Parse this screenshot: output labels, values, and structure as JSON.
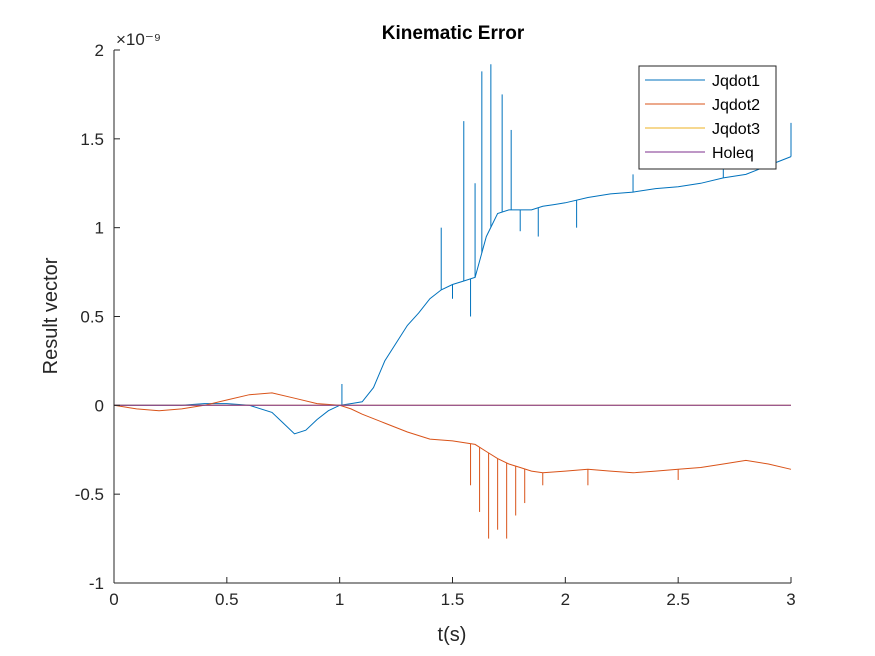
{
  "chart_data": {
    "type": "line",
    "title": "Kinematic Error",
    "xlabel": "t(s)",
    "ylabel": "Result vector",
    "xlim": [
      0,
      3
    ],
    "ylim": [
      -1,
      2
    ],
    "y_multiplier": "×10⁻⁹",
    "x_ticks": [
      "0",
      "0.5",
      "1",
      "1.5",
      "2",
      "2.5",
      "3"
    ],
    "y_ticks": [
      "-1",
      "-0.5",
      "0",
      "0.5",
      "1",
      "1.5",
      "2"
    ],
    "grid": false,
    "legend_position": "top-right",
    "series": [
      {
        "name": "Jqdot1",
        "color": "#0072BD",
        "x": [
          0,
          0.1,
          0.2,
          0.3,
          0.4,
          0.5,
          0.6,
          0.7,
          0.75,
          0.8,
          0.85,
          0.9,
          0.95,
          1.0,
          1.05,
          1.1,
          1.15,
          1.2,
          1.25,
          1.3,
          1.35,
          1.4,
          1.45,
          1.5,
          1.55,
          1.6,
          1.65,
          1.7,
          1.75,
          1.8,
          1.85,
          1.9,
          1.95,
          2.0,
          2.1,
          2.2,
          2.3,
          2.4,
          2.5,
          2.6,
          2.7,
          2.8,
          2.9,
          3.0
        ],
        "y": [
          0,
          0,
          0,
          0,
          0.01,
          0.01,
          0,
          -0.04,
          -0.1,
          -0.16,
          -0.14,
          -0.08,
          -0.03,
          0,
          0.01,
          0.02,
          0.1,
          0.25,
          0.35,
          0.45,
          0.52,
          0.6,
          0.65,
          0.68,
          0.7,
          0.72,
          0.95,
          1.08,
          1.1,
          1.1,
          1.1,
          1.12,
          1.13,
          1.14,
          1.17,
          1.19,
          1.2,
          1.22,
          1.23,
          1.25,
          1.28,
          1.3,
          1.35,
          1.4
        ],
        "spikes": [
          {
            "x": 1.01,
            "y": 0.12
          },
          {
            "x": 1.45,
            "y": 1.0
          },
          {
            "x": 1.5,
            "y": 0.6
          },
          {
            "x": 1.55,
            "y": 1.6
          },
          {
            "x": 1.58,
            "y": 0.5
          },
          {
            "x": 1.6,
            "y": 1.25
          },
          {
            "x": 1.63,
            "y": 1.88
          },
          {
            "x": 1.67,
            "y": 1.92
          },
          {
            "x": 1.72,
            "y": 1.75
          },
          {
            "x": 1.76,
            "y": 1.55
          },
          {
            "x": 1.8,
            "y": 0.98
          },
          {
            "x": 1.88,
            "y": 0.95
          },
          {
            "x": 2.05,
            "y": 1.0
          },
          {
            "x": 2.3,
            "y": 1.3
          },
          {
            "x": 2.6,
            "y": 1.25
          },
          {
            "x": 2.7,
            "y": 1.35
          },
          {
            "x": 2.9,
            "y": 1.45
          },
          {
            "x": 3.0,
            "y": 1.59
          }
        ]
      },
      {
        "name": "Jqdot2",
        "color": "#D95319",
        "x": [
          0,
          0.1,
          0.2,
          0.3,
          0.4,
          0.5,
          0.6,
          0.7,
          0.8,
          0.9,
          1.0,
          1.05,
          1.1,
          1.2,
          1.3,
          1.4,
          1.5,
          1.6,
          1.65,
          1.7,
          1.75,
          1.8,
          1.85,
          1.9,
          2.0,
          2.1,
          2.2,
          2.3,
          2.4,
          2.5,
          2.6,
          2.7,
          2.8,
          2.9,
          3.0
        ],
        "y": [
          0,
          -0.02,
          -0.03,
          -0.02,
          0,
          0.03,
          0.06,
          0.07,
          0.04,
          0.01,
          0,
          -0.02,
          -0.05,
          -0.1,
          -0.15,
          -0.19,
          -0.2,
          -0.22,
          -0.26,
          -0.3,
          -0.33,
          -0.35,
          -0.37,
          -0.38,
          -0.37,
          -0.36,
          -0.37,
          -0.38,
          -0.37,
          -0.36,
          -0.35,
          -0.33,
          -0.31,
          -0.33,
          -0.36
        ],
        "spikes": [
          {
            "x": 1.58,
            "y": -0.45
          },
          {
            "x": 1.62,
            "y": -0.6
          },
          {
            "x": 1.66,
            "y": -0.75
          },
          {
            "x": 1.7,
            "y": -0.7
          },
          {
            "x": 1.74,
            "y": -0.75
          },
          {
            "x": 1.78,
            "y": -0.62
          },
          {
            "x": 1.82,
            "y": -0.55
          },
          {
            "x": 1.9,
            "y": -0.45
          },
          {
            "x": 2.1,
            "y": -0.45
          },
          {
            "x": 2.5,
            "y": -0.42
          }
        ]
      },
      {
        "name": "Jqdot3",
        "color": "#EDB120",
        "x": [
          0,
          0.5,
          1.0,
          1.5,
          2.0,
          2.5,
          3.0
        ],
        "y": [
          0,
          0,
          0,
          0,
          0,
          0,
          0
        ]
      },
      {
        "name": "Holeq",
        "color": "#7E2F8E",
        "x": [
          0,
          3
        ],
        "y": [
          0,
          0
        ]
      }
    ]
  }
}
